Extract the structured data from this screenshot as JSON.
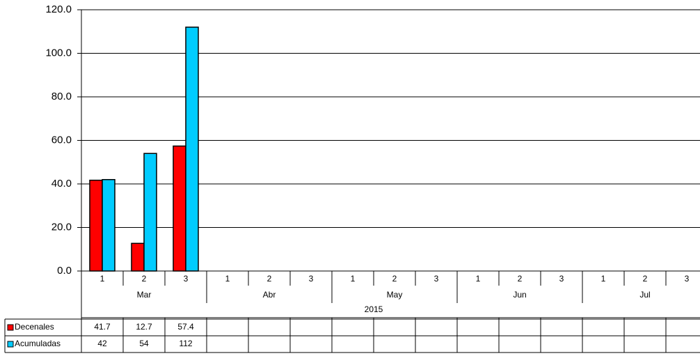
{
  "chart_data": {
    "type": "bar",
    "categories": [
      "1",
      "2",
      "3",
      "1",
      "2",
      "3",
      "1",
      "2",
      "3",
      "1",
      "2",
      "3",
      "1",
      "2",
      "3"
    ],
    "months": [
      "Mar",
      "Abr",
      "May",
      "Jun",
      "Jul"
    ],
    "year": "2015",
    "series": [
      {
        "name": "Decenales",
        "color": "#ff0000",
        "values": [
          41.7,
          12.7,
          57.4,
          null,
          null,
          null,
          null,
          null,
          null,
          null,
          null,
          null,
          null,
          null,
          null
        ]
      },
      {
        "name": "Acumuladas",
        "color": "#00ccff",
        "values": [
          42,
          54,
          112,
          null,
          null,
          null,
          null,
          null,
          null,
          null,
          null,
          null,
          null,
          null,
          null
        ]
      }
    ],
    "ylim": [
      0,
      120
    ],
    "yticks": [
      {
        "value": 0,
        "label": "0.0"
      },
      {
        "value": 20,
        "label": "20.0"
      },
      {
        "value": 40,
        "label": "40.0"
      },
      {
        "value": 60,
        "label": "60.0"
      },
      {
        "value": 80,
        "label": "80.0"
      },
      {
        "value": 100,
        "label": "100.0"
      },
      {
        "value": 120,
        "label": "120.0"
      }
    ],
    "grid": true
  }
}
